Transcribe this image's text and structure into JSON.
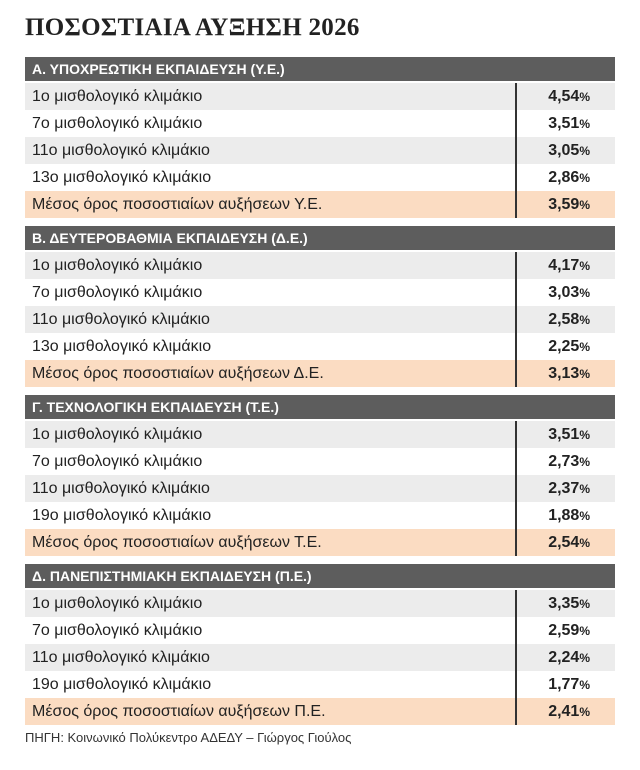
{
  "title": "ΠΟΣΟΣΤΙΑΙΑ ΑΥΞΗΣΗ 2026",
  "unit": "%",
  "sections": [
    {
      "header": "Α. ΥΠΟΧΡΕΩΤΙΚΗ ΕΚΠΑΙΔΕΥΣΗ (Υ.Ε.)",
      "rows": [
        {
          "label": "1ο μισθολογικό κλιμάκιο",
          "value": "4,54"
        },
        {
          "label": "7ο μισθολογικό κλιμάκιο",
          "value": "3,51"
        },
        {
          "label": "11ο μισθολογικό κλιμάκιο",
          "value": "3,05"
        },
        {
          "label": "13ο μισθολογικό κλιμάκιο",
          "value": "2,86"
        },
        {
          "label": "Μέσος όρος ποσοστιαίων αυξήσεων Υ.Ε.",
          "value": "3,59"
        }
      ]
    },
    {
      "header": "Β. ΔΕΥΤΕΡΟΒΑΘΜΙΑ ΕΚΠΑΙΔΕΥΣΗ (Δ.Ε.)",
      "rows": [
        {
          "label": "1ο μισθολογικό κλιμάκιο",
          "value": "4,17"
        },
        {
          "label": "7ο μισθολογικό κλιμάκιο",
          "value": "3,03"
        },
        {
          "label": "11ο μισθολογικό κλιμάκιο",
          "value": "2,58"
        },
        {
          "label": "13ο μισθολογικό κλιμάκιο",
          "value": "2,25"
        },
        {
          "label": "Μέσος όρος ποσοστιαίων αυξήσεων Δ.Ε.",
          "value": "3,13"
        }
      ]
    },
    {
      "header": "Γ. ΤΕΧΝΟΛΟΓΙΚΗ ΕΚΠΑΙΔΕΥΣΗ (Τ.Ε.)",
      "rows": [
        {
          "label": "1ο μισθολογικό κλιμάκιο",
          "value": "3,51"
        },
        {
          "label": "7ο μισθολογικό κλιμάκιο",
          "value": "2,73"
        },
        {
          "label": "11ο μισθολογικό κλιμάκιο",
          "value": "2,37"
        },
        {
          "label": "19ο μισθολογικό κλιμάκιο",
          "value": "1,88"
        },
        {
          "label": "Μέσος όρος ποσοστιαίων αυξήσεων Τ.Ε.",
          "value": "2,54"
        }
      ]
    },
    {
      "header": "Δ. ΠΑΝΕΠΙΣΤΗΜΙΑΚΗ ΕΚΠΑΙΔΕΥΣΗ (Π.Ε.)",
      "rows": [
        {
          "label": "1ο μισθολογικό κλιμάκιο",
          "value": "3,35"
        },
        {
          "label": "7ο μισθολογικό κλιμάκιο",
          "value": "2,59"
        },
        {
          "label": "11ο μισθολογικό κλιμάκιο",
          "value": "2,24"
        },
        {
          "label": "19ο μισθολογικό κλιμάκιο",
          "value": "1,77"
        },
        {
          "label": "Μέσος όρος ποσοστιαίων αυξήσεων Π.Ε.",
          "value": "2,41"
        }
      ]
    }
  ],
  "source": "ΠΗΓΗ: Κοινωνικό Πολύκεντρο ΑΔΕΔΥ – Γιώργος Γιούλος"
}
